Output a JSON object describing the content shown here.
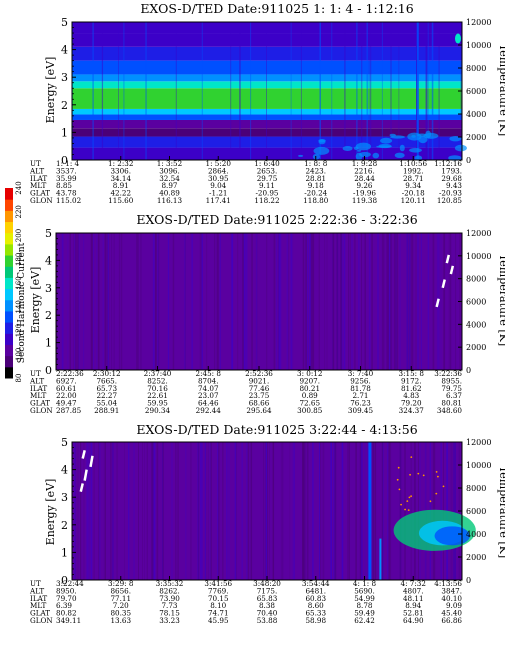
{
  "colorbar": {
    "label": "Second Harmonic Current",
    "ticks": [
      "80",
      "100",
      "120",
      "140",
      "160",
      "180",
      "200",
      "220",
      "240"
    ],
    "colors": [
      "#000000",
      "#4b0078",
      "#5a00a0",
      "#3c00c8",
      "#1e1ee6",
      "#0050ff",
      "#0090ff",
      "#00c8ff",
      "#00e6c8",
      "#00c878",
      "#30d230",
      "#96e600",
      "#e6f000",
      "#ffd200",
      "#ff9600",
      "#ff4600",
      "#e60000"
    ]
  },
  "chart_data": [
    {
      "type": "heatmap",
      "title": "EXOS-D/TED   Date:911025  1: 1: 4 - 1:12:16",
      "ylabel": "Energy [eV]",
      "y2label": "Temperature [K]",
      "ylim": [
        0,
        5
      ],
      "y2lim": [
        0,
        12000
      ],
      "yticks": [
        "0",
        "1",
        "2",
        "3",
        "4",
        "5"
      ],
      "y2ticks": [
        "0",
        "2000",
        "4000",
        "6000",
        "8000",
        "10000",
        "12000"
      ],
      "row_labels": [
        "UT",
        "ALT",
        "ILAT",
        "MLT",
        "GLAT",
        "GLON"
      ],
      "columns": [
        [
          "1: 1: 4",
          "3537.",
          "35.99",
          "8.85",
          "43.78",
          "115.02"
        ],
        [
          "1: 2:32",
          "3306.",
          "34.14",
          "8.91",
          "42.22",
          "115.60"
        ],
        [
          "1: 3:52",
          "3096.",
          "32.54",
          "8.97",
          "40.89",
          "116.13"
        ],
        [
          "1: 5:20",
          "2864.",
          "30.95",
          "9.04",
          "-1.21",
          "117.41"
        ],
        [
          "1: 6:40",
          "2653.",
          "29.75",
          "9.11",
          "-20.95",
          "118.22"
        ],
        [
          "1: 8: 8",
          "2423.",
          "28.81",
          "9.18",
          "-20.24",
          "118.80"
        ],
        [
          "1: 9:28",
          "2216.",
          "28.44",
          "9.26",
          "-19.96",
          "119.38"
        ],
        [
          "1:10:56",
          "1992.",
          "28.71",
          "9.34",
          "-20.18",
          "120.11"
        ],
        [
          "1:12:16",
          "1793.",
          "29.68",
          "9.43",
          "-20.93",
          "120.85"
        ]
      ],
      "bands": [
        {
          "y0": 0.0,
          "y1": 0.45,
          "level": 3
        },
        {
          "y0": 0.45,
          "y1": 0.85,
          "level": 4
        },
        {
          "y0": 0.85,
          "y1": 1.15,
          "level": 1
        },
        {
          "y0": 1.15,
          "y1": 1.45,
          "level": 2
        },
        {
          "y0": 1.45,
          "y1": 1.65,
          "level": 5
        },
        {
          "y0": 1.65,
          "y1": 1.85,
          "level": 7
        },
        {
          "y0": 1.85,
          "y1": 2.6,
          "level": 10
        },
        {
          "y0": 2.6,
          "y1": 2.85,
          "level": 8
        },
        {
          "y0": 2.85,
          "y1": 3.1,
          "level": 6
        },
        {
          "y0": 3.1,
          "y1": 3.6,
          "level": 5
        },
        {
          "y0": 3.6,
          "y1": 4.1,
          "level": 4
        },
        {
          "y0": 4.1,
          "y1": 4.6,
          "level": 3
        },
        {
          "y0": 4.6,
          "y1": 5.0,
          "level": 3
        }
      ]
    },
    {
      "type": "heatmap",
      "title": "EXOS-D/TED   Date:911025  2:22:36 - 3:22:36",
      "ylabel": "Energy [eV]",
      "y2label": "Temperature [K]",
      "ylim": [
        0,
        5
      ],
      "y2lim": [
        0,
        12000
      ],
      "yticks": [
        "0",
        "1",
        "2",
        "3",
        "4",
        "5"
      ],
      "y2ticks": [
        "0",
        "2000",
        "4000",
        "6000",
        "8000",
        "10000",
        "12000"
      ],
      "row_labels": [
        "UT",
        "ALT",
        "ILAT",
        "MLT",
        "GLAT",
        "GLON"
      ],
      "columns": [
        [
          "2:22:36",
          "6927.",
          "60.61",
          "22.00",
          "49.47",
          "287.85"
        ],
        [
          "2:30:12",
          "7665.",
          "65.73",
          "22.27",
          "55.04",
          "288.91"
        ],
        [
          "2:37:40",
          "8252.",
          "70.16",
          "22.61",
          "59.95",
          "290.34"
        ],
        [
          "2:45: 8",
          "8704.",
          "74.07",
          "23.07",
          "64.46",
          "292.44"
        ],
        [
          "2:52:36",
          "9021.",
          "77.46",
          "23.75",
          "68.66",
          "295.64"
        ],
        [
          "3: 0:12",
          "9207.",
          "80.21",
          "0.89",
          "72.65",
          "300.85"
        ],
        [
          "3: 7:40",
          "9256.",
          "81.78",
          "2.71",
          "76.23",
          "309.45"
        ],
        [
          "3:15: 8",
          "9172.",
          "81.62",
          "4.83",
          "79.20",
          "324.37"
        ],
        [
          "3:22:36",
          "8955.",
          "79.75",
          "6.37",
          "80.81",
          "348.60"
        ]
      ],
      "bands": [
        {
          "y0": 0.0,
          "y1": 5.0,
          "level": 2
        }
      ]
    },
    {
      "type": "heatmap",
      "title": "EXOS-D/TED   Date:911025  3:22:44 - 4:13:56",
      "ylabel": "Energy [eV]",
      "y2label": "Temperature [K]",
      "ylim": [
        0,
        5
      ],
      "y2lim": [
        0,
        12000
      ],
      "yticks": [
        "0",
        "1",
        "2",
        "3",
        "4",
        "5"
      ],
      "y2ticks": [
        "0",
        "2000",
        "4000",
        "6000",
        "8000",
        "10000",
        "12000"
      ],
      "row_labels": [
        "UT",
        "ALT",
        "ILAT",
        "MLT",
        "GLAT",
        "GLON"
      ],
      "columns": [
        [
          "3:22:44",
          "8950.",
          "79.70",
          "6.39",
          "80.82",
          "349.11"
        ],
        [
          "3:29: 8",
          "8656.",
          "77.11",
          "7.20",
          "80.35",
          "13.63"
        ],
        [
          "3:35:32",
          "8262.",
          "73.90",
          "7.73",
          "78.15",
          "33.23"
        ],
        [
          "3:41:56",
          "7769.",
          "70.15",
          "8.10",
          "74.71",
          "45.95"
        ],
        [
          "3:48:20",
          "7175.",
          "65.83",
          "8.38",
          "70.40",
          "53.88"
        ],
        [
          "3:54:44",
          "6481.",
          "60.83",
          "8.60",
          "65.33",
          "58.98"
        ],
        [
          "4: 1: 8",
          "5690.",
          "54.99",
          "8.78",
          "59.49",
          "62.42"
        ],
        [
          "4: 7:32",
          "4807.",
          "48.11",
          "8.94",
          "52.81",
          "64.90"
        ],
        [
          "4:13:56",
          "3847.",
          "40.10",
          "9.09",
          "45.40",
          "66.86"
        ]
      ],
      "bands": [
        {
          "y0": 0.0,
          "y1": 5.0,
          "level": 2
        }
      ]
    }
  ]
}
